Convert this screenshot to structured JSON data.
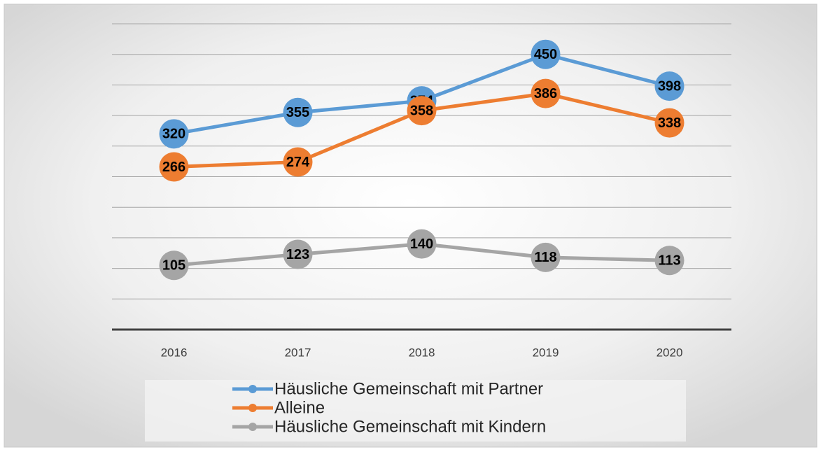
{
  "chart_data": {
    "type": "line",
    "categories": [
      "2016",
      "2017",
      "2018",
      "2019",
      "2020"
    ],
    "series": [
      {
        "name": "Häusliche Gemeinschaft mit Partner",
        "color": "#5b9bd5",
        "values": [
          320,
          355,
          374,
          450,
          398
        ]
      },
      {
        "name": "Alleine",
        "color": "#ed7d31",
        "values": [
          266,
          274,
          358,
          386,
          338
        ]
      },
      {
        "name": "Häusliche Gemeinschaft mit Kindern",
        "color": "#a5a5a5",
        "values": [
          105,
          123,
          140,
          118,
          113
        ]
      }
    ],
    "ylim": [
      0,
      500
    ],
    "yticks": [
      0,
      50,
      100,
      150,
      200,
      250,
      300,
      350,
      400,
      450,
      500
    ],
    "grid": true,
    "legend": "bottom"
  }
}
